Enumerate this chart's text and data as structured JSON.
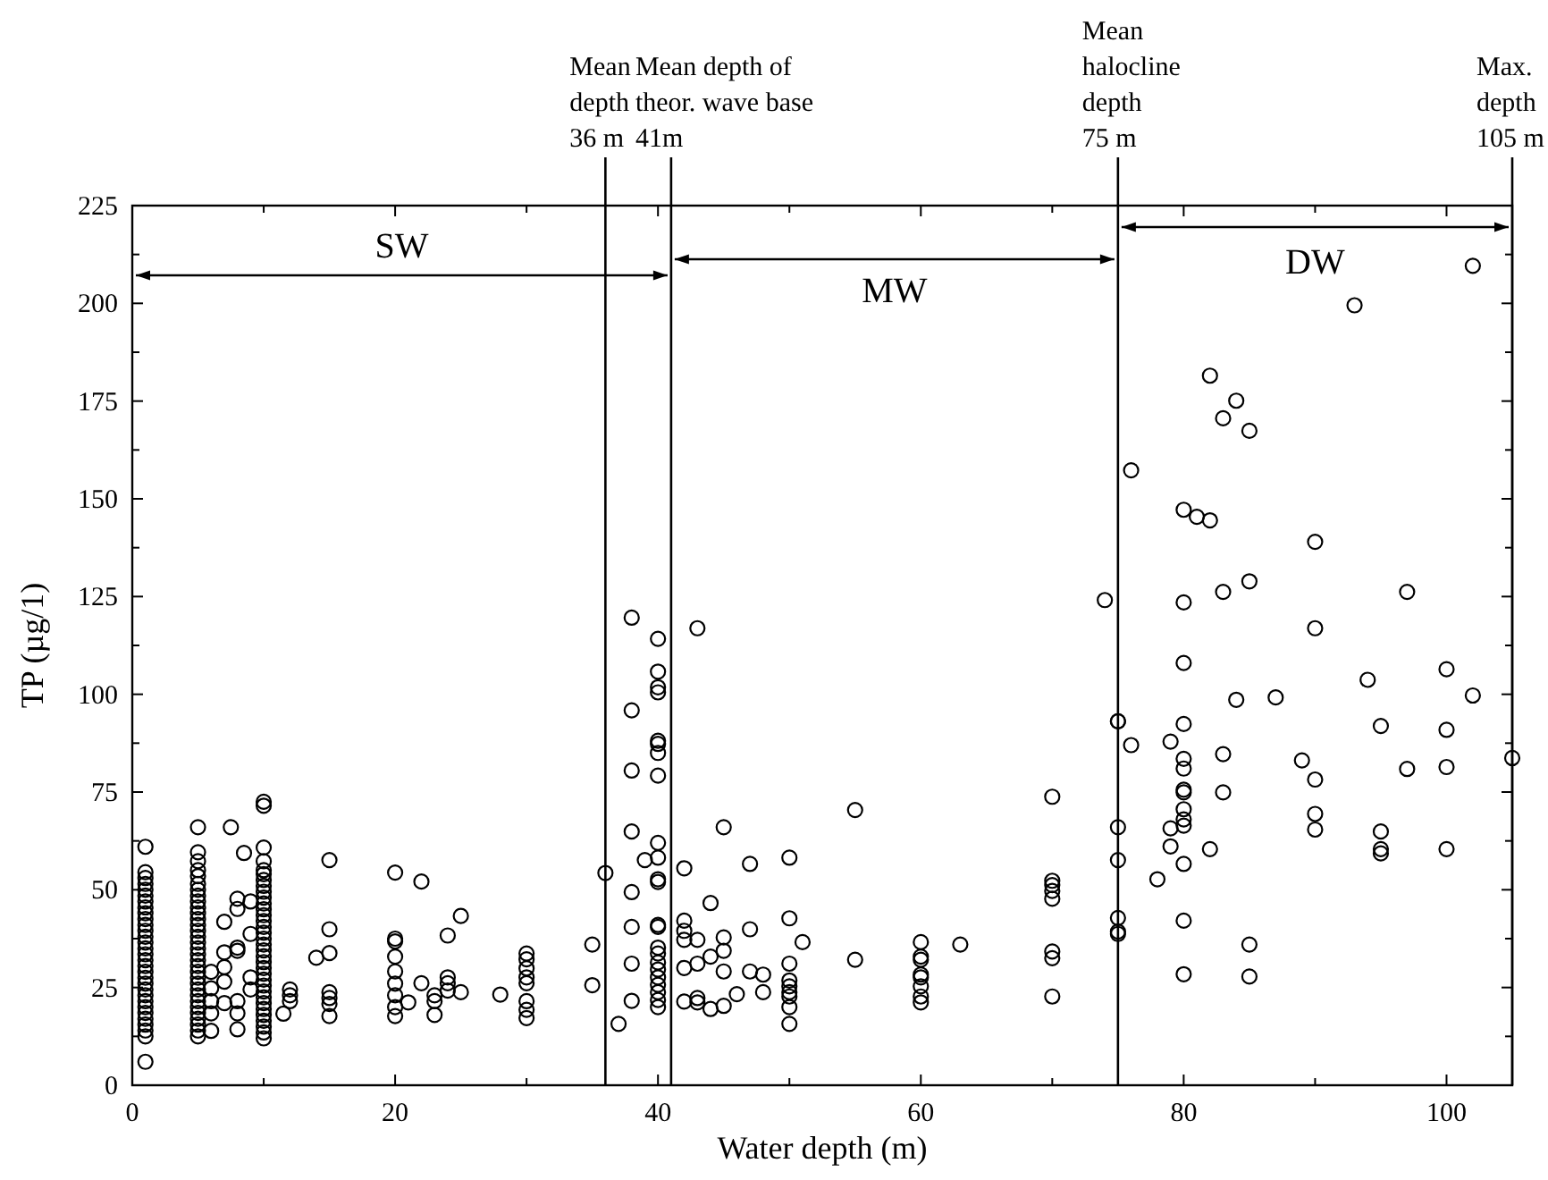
{
  "chart_data": {
    "type": "scatter",
    "xlabel": "Water depth (m)",
    "ylabel": "TP (µg/1)",
    "xlim": [
      0,
      105
    ],
    "ylim": [
      0,
      225
    ],
    "xticks": [
      0,
      {
        "value": 10,
        "label": null
      },
      20,
      {
        "value": 30,
        "label": null
      },
      40,
      {
        "value": 50,
        "label": null
      },
      60,
      {
        "value": 70,
        "label": null
      },
      80,
      {
        "value": 90,
        "label": null
      },
      100
    ],
    "yticks": [
      0,
      {
        "value": 12.5,
        "label": null
      },
      25,
      {
        "value": 37.5,
        "label": null
      },
      50,
      {
        "value": 62.5,
        "label": null
      },
      75,
      {
        "value": 87.5,
        "label": null
      },
      100,
      {
        "value": 112.5,
        "label": null
      },
      125,
      {
        "value": 137.5,
        "label": null
      },
      150,
      {
        "value": 162.5,
        "label": null
      },
      175,
      {
        "value": 187.5,
        "label": null
      },
      200,
      {
        "value": 212.5,
        "label": null
      },
      225
    ],
    "grid": false,
    "marker": "circle",
    "ref_lines": [
      {
        "axis": "x",
        "value": 36,
        "label": "Mean\ndepth\n36 m"
      },
      {
        "axis": "x",
        "value": 41,
        "label": "Mean depth of\ntheor. wave base\n41m"
      },
      {
        "axis": "x",
        "value": 75,
        "label": "Mean\nhalocline\ndepth\n75 m"
      },
      {
        "axis": "x",
        "value": 105,
        "label": "Max.\ndepth\n105 m"
      }
    ],
    "annotations": [
      "SW",
      "MW",
      "DW"
    ],
    "series": [
      {
        "color": "#000000",
        "x": [
          1,
          1,
          1,
          1,
          1,
          1,
          1,
          1,
          1,
          1,
          1,
          1,
          1,
          1,
          1,
          1,
          1,
          1,
          1,
          1,
          1,
          1,
          1,
          1,
          1,
          1,
          1,
          1,
          1,
          1,
          1,
          5,
          5,
          5,
          5,
          5,
          5,
          5,
          5,
          5,
          5,
          5,
          5,
          5,
          5,
          5,
          5,
          5,
          5,
          5,
          5,
          5,
          5,
          5,
          5,
          5,
          5,
          5,
          5,
          5,
          5,
          5,
          5,
          6,
          6,
          6,
          6,
          6,
          7,
          7,
          7,
          7,
          7,
          7.5,
          8,
          8,
          8,
          8,
          8,
          8,
          8,
          8.5,
          9,
          9,
          9,
          9,
          10,
          10,
          10,
          10,
          10,
          10,
          10,
          10,
          10,
          10,
          10,
          10,
          10,
          10,
          10,
          10,
          10,
          10,
          10,
          10,
          10,
          10,
          10,
          10,
          10,
          10,
          10,
          10,
          10,
          10,
          10,
          10,
          10,
          10,
          11.5,
          12,
          12,
          12,
          14,
          15,
          15,
          15,
          15,
          15,
          15,
          15,
          20,
          20,
          20,
          20,
          20,
          20,
          20,
          20,
          20,
          21,
          22,
          22,
          23,
          23,
          23,
          24,
          24,
          24,
          24,
          25,
          25,
          28,
          30,
          30,
          30,
          30,
          30,
          30,
          30,
          30,
          35,
          35,
          36,
          37,
          38,
          38,
          38,
          38,
          38,
          38,
          38,
          38,
          39,
          40,
          40,
          40,
          40,
          40,
          40,
          40,
          40,
          40,
          40,
          40,
          40,
          40,
          40,
          40,
          40,
          40,
          40,
          40,
          40,
          40,
          40,
          40,
          42,
          42,
          42,
          42,
          42,
          42,
          43,
          43,
          43,
          43,
          43,
          44,
          44,
          44,
          45,
          45,
          45,
          45,
          45,
          46,
          47,
          47,
          47,
          48,
          48,
          50,
          50,
          50,
          50,
          50,
          50,
          50,
          50,
          50,
          51,
          55,
          55,
          60,
          60,
          60,
          60,
          60,
          60,
          60,
          60,
          63,
          70,
          70,
          70,
          70,
          70,
          70,
          70,
          70,
          74,
          75,
          75,
          75,
          75,
          75,
          75,
          75,
          76,
          76,
          78,
          79,
          79,
          79,
          80,
          80,
          80,
          80,
          80,
          80,
          80,
          80,
          80,
          80,
          80,
          80,
          80,
          80,
          81,
          82,
          82,
          82,
          83,
          83,
          83,
          83,
          84,
          84,
          85,
          85,
          85,
          85,
          87,
          89,
          90,
          90,
          90,
          90,
          90,
          93,
          94,
          95,
          95,
          95,
          95,
          97,
          97,
          100,
          100,
          100,
          100,
          102,
          102,
          105
        ],
        "values": [
          6,
          12.5,
          14,
          15.5,
          17,
          18.5,
          20,
          21.5,
          23,
          24.5,
          26,
          27.5,
          29,
          30.5,
          32,
          33.5,
          35,
          36.5,
          38,
          39.5,
          41,
          42.5,
          44,
          45.5,
          47,
          48.5,
          50,
          51.5,
          53,
          54.5,
          61,
          12.5,
          14,
          15.5,
          17,
          18.5,
          20,
          21.5,
          23,
          24.5,
          26,
          27.5,
          29,
          30.5,
          32,
          33.5,
          35,
          36.5,
          38,
          39.5,
          41,
          42.5,
          44,
          45.5,
          47,
          48.5,
          50,
          51.5,
          53.5,
          55,
          57.3,
          59.6,
          66,
          29,
          24.8,
          21.5,
          18.4,
          13.9,
          41.8,
          34,
          30.2,
          26.5,
          21,
          66,
          47.7,
          45.1,
          35.2,
          34.4,
          21.5,
          18.4,
          14.3,
          59.4,
          47,
          38.7,
          27.6,
          24.5,
          12,
          13.5,
          15,
          16.5,
          18,
          19.5,
          21,
          22.5,
          24,
          25.5,
          27,
          28.5,
          30,
          31.5,
          33,
          34.5,
          36,
          37.5,
          39,
          40.5,
          42,
          43.5,
          45,
          46.5,
          48,
          49.5,
          51,
          52.5,
          54,
          55,
          57.3,
          60.8,
          71.5,
          72.5,
          18.3,
          24.5,
          23,
          21.5,
          32.6,
          57.6,
          39.9,
          33.8,
          23.8,
          22.3,
          20.8,
          17.7,
          54.4,
          37.5,
          36.8,
          32.9,
          29.1,
          26,
          23,
          20,
          17.7,
          21.2,
          52.1,
          26.1,
          23,
          21.5,
          18,
          38.3,
          27.6,
          26.1,
          24.2,
          43.3,
          23.8,
          23.2,
          33.7,
          32.2,
          29.9,
          27.6,
          26.1,
          21.5,
          19.3,
          17.2,
          36,
          25.6,
          54.3,
          15.7,
          119.6,
          95.9,
          80.5,
          64.9,
          49.4,
          40.5,
          31.1,
          21.6,
          57.6,
          114.2,
          105.8,
          101.8,
          100.5,
          88.1,
          87.3,
          85,
          79.2,
          62,
          58.2,
          52.7,
          52,
          41,
          40.5,
          35.2,
          33.7,
          31.4,
          29.6,
          27.6,
          25.7,
          23.8,
          21.8,
          20,
          55.5,
          42.1,
          39.5,
          37.2,
          30,
          21.4,
          116.9,
          37.2,
          31.1,
          22.3,
          21.2,
          46.6,
          32.9,
          19.5,
          66,
          37.8,
          34.4,
          29.1,
          20.3,
          23.3,
          56.6,
          39.9,
          29.1,
          28.3,
          23.8,
          58.2,
          42.7,
          31.1,
          26.8,
          25.3,
          23.8,
          22.7,
          20,
          15.7,
          36.6,
          70.4,
          32.1,
          36.6,
          32.9,
          32.1,
          28.3,
          27.6,
          25.3,
          22.7,
          21.2,
          36,
          73.8,
          52.3,
          51.2,
          49.7,
          47.7,
          34.2,
          32.5,
          22.7,
          124.1,
          93.1,
          93.1,
          66,
          57.6,
          42.8,
          39.3,
          38.7,
          157.3,
          87,
          52.7,
          87.9,
          65.7,
          61.1,
          147.2,
          123.5,
          108,
          92.4,
          83.5,
          81,
          75.6,
          74.9,
          70.6,
          68,
          66.4,
          56.6,
          42.1,
          28.4,
          145.4,
          181.5,
          144.5,
          60.4,
          170.6,
          126.2,
          84.7,
          74.9,
          175.1,
          98.6,
          167.4,
          128.9,
          36,
          27.8,
          99.2,
          83.1,
          139,
          116.9,
          78.2,
          69.4,
          65.4,
          199.5,
          103.7,
          91.9,
          64.9,
          60.4,
          59.3,
          126.2,
          80.9,
          106.4,
          90.9,
          81.4,
          60.4,
          209.6,
          99.7,
          83.7
        ]
      }
    ]
  }
}
